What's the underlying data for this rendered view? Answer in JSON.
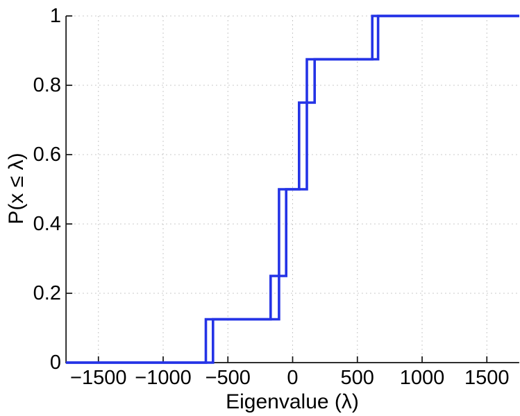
{
  "figure": {
    "background_color": "#ffffff"
  },
  "chart_data": {
    "type": "line",
    "subtype": "ecdf-step",
    "title": "",
    "xlabel": "Eigenvalue (λ)",
    "ylabel": "P(x ≤ λ)",
    "xlim": [
      -1750,
      1750
    ],
    "ylim": [
      0,
      1
    ],
    "x_ticks": [
      -1500,
      -1000,
      -500,
      0,
      500,
      1000,
      1500
    ],
    "x_tick_labels": [
      "−1500",
      "−1000",
      "−500",
      "0",
      "500",
      "1000",
      "1500"
    ],
    "y_ticks": [
      0,
      0.2,
      0.4,
      0.6,
      0.8,
      1
    ],
    "y_tick_labels": [
      "0",
      "0.2",
      "0.4",
      "0.6",
      "0.8",
      "1"
    ],
    "grid": "dotted",
    "grid_color": "#bcbcbc",
    "axis_color": "#111111",
    "line_color": "#2433e6",
    "line_width": 3.6,
    "legend": "none",
    "series": [
      {
        "name": "ecdf-curve-1",
        "step_jumps": [
          [
            -670,
            0.125
          ],
          [
            -170,
            0.25
          ],
          [
            -105,
            0.5
          ],
          [
            50,
            0.75
          ],
          [
            170,
            0.875
          ],
          [
            615,
            1.0
          ]
        ],
        "eigenvalues": [
          -670,
          -170,
          -105,
          -105,
          50,
          50,
          170,
          615
        ]
      },
      {
        "name": "ecdf-curve-2",
        "step_jumps": [
          [
            -615,
            0.125
          ],
          [
            -105,
            0.25
          ],
          [
            -50,
            0.5
          ],
          [
            110,
            0.875
          ],
          [
            660,
            1.0
          ]
        ],
        "eigenvalues": [
          -615,
          -105,
          -50,
          -50,
          110,
          110,
          110,
          660
        ]
      }
    ]
  }
}
